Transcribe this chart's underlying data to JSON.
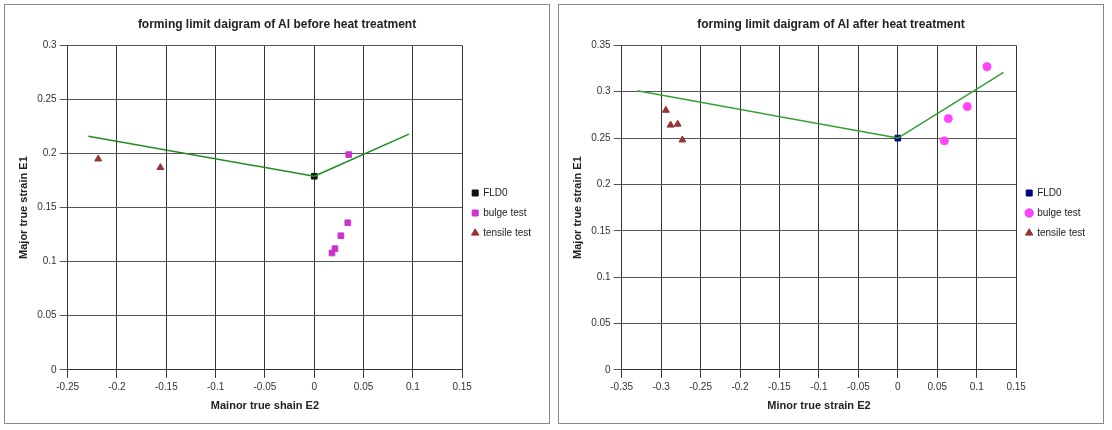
{
  "chart_data": [
    {
      "type": "scatter",
      "title": "forming limit daigram of Al before heat treatment",
      "xlabel": "Mainor true shain E2",
      "ylabel": "Major true strain E1",
      "xlim": [
        -0.25,
        0.15
      ],
      "xticks": [
        -0.25,
        -0.2,
        -0.15,
        -0.1,
        -0.05,
        0,
        0.05,
        0.1,
        0.15
      ],
      "ylim": [
        0,
        0.3
      ],
      "yticks": [
        0,
        0.05,
        0.1,
        0.15,
        0.2,
        0.25,
        0.3
      ],
      "grid": true,
      "legend": "right",
      "series": [
        {
          "type": "line",
          "color": "#228b22",
          "marker": "none",
          "x": [
            -0.229,
            0,
            0.096
          ],
          "values": [
            0.216,
            0.179,
            0.218
          ]
        },
        {
          "name": "FLD0",
          "color": "#111111",
          "marker": "square",
          "x": [
            0
          ],
          "values": [
            0.179
          ]
        },
        {
          "name": "bulge test",
          "color": "#cc33cc",
          "marker": "square",
          "x": [
            0.035,
            0.034,
            0.027,
            0.021,
            0.018
          ],
          "values": [
            0.199,
            0.136,
            0.124,
            0.112,
            0.108
          ]
        },
        {
          "name": "tensile test",
          "color": "#993333",
          "marker": "triangle",
          "x": [
            -0.219,
            -0.156
          ],
          "values": [
            0.195,
            0.187
          ]
        }
      ]
    },
    {
      "type": "scatter",
      "title": "forming limit daigram of Al after heat treatment",
      "xlabel": "Minor true strain E2",
      "ylabel": "Major true strain E1",
      "xlim": [
        -0.35,
        0.15
      ],
      "xticks": [
        -0.35,
        -0.3,
        -0.25,
        -0.2,
        -0.15,
        -0.1,
        -0.05,
        0,
        0.05,
        0.1,
        0.15
      ],
      "ylim": [
        0,
        0.35
      ],
      "yticks": [
        0,
        0.05,
        0.1,
        0.15,
        0.2,
        0.25,
        0.3,
        0.35
      ],
      "grid": true,
      "legend": "right",
      "series": [
        {
          "type": "line",
          "color": "#33a033",
          "marker": "none",
          "x": [
            -0.33,
            0,
            0.134
          ],
          "values": [
            0.301,
            0.25,
            0.321
          ]
        },
        {
          "name": "FLD0",
          "color": "#000080",
          "marker": "square",
          "x": [
            0
          ],
          "values": [
            0.25
          ]
        },
        {
          "name": "bulge test",
          "color": "#ff44ff",
          "marker": "circle",
          "x": [
            0.059,
            0.064,
            0.088,
            0.113
          ],
          "values": [
            0.247,
            0.271,
            0.284,
            0.327
          ]
        },
        {
          "name": "tensile test",
          "color": "#993333",
          "marker": "triangle",
          "x": [
            -0.294,
            -0.288,
            -0.279,
            -0.273
          ],
          "values": [
            0.28,
            0.264,
            0.265,
            0.248
          ]
        }
      ]
    }
  ]
}
